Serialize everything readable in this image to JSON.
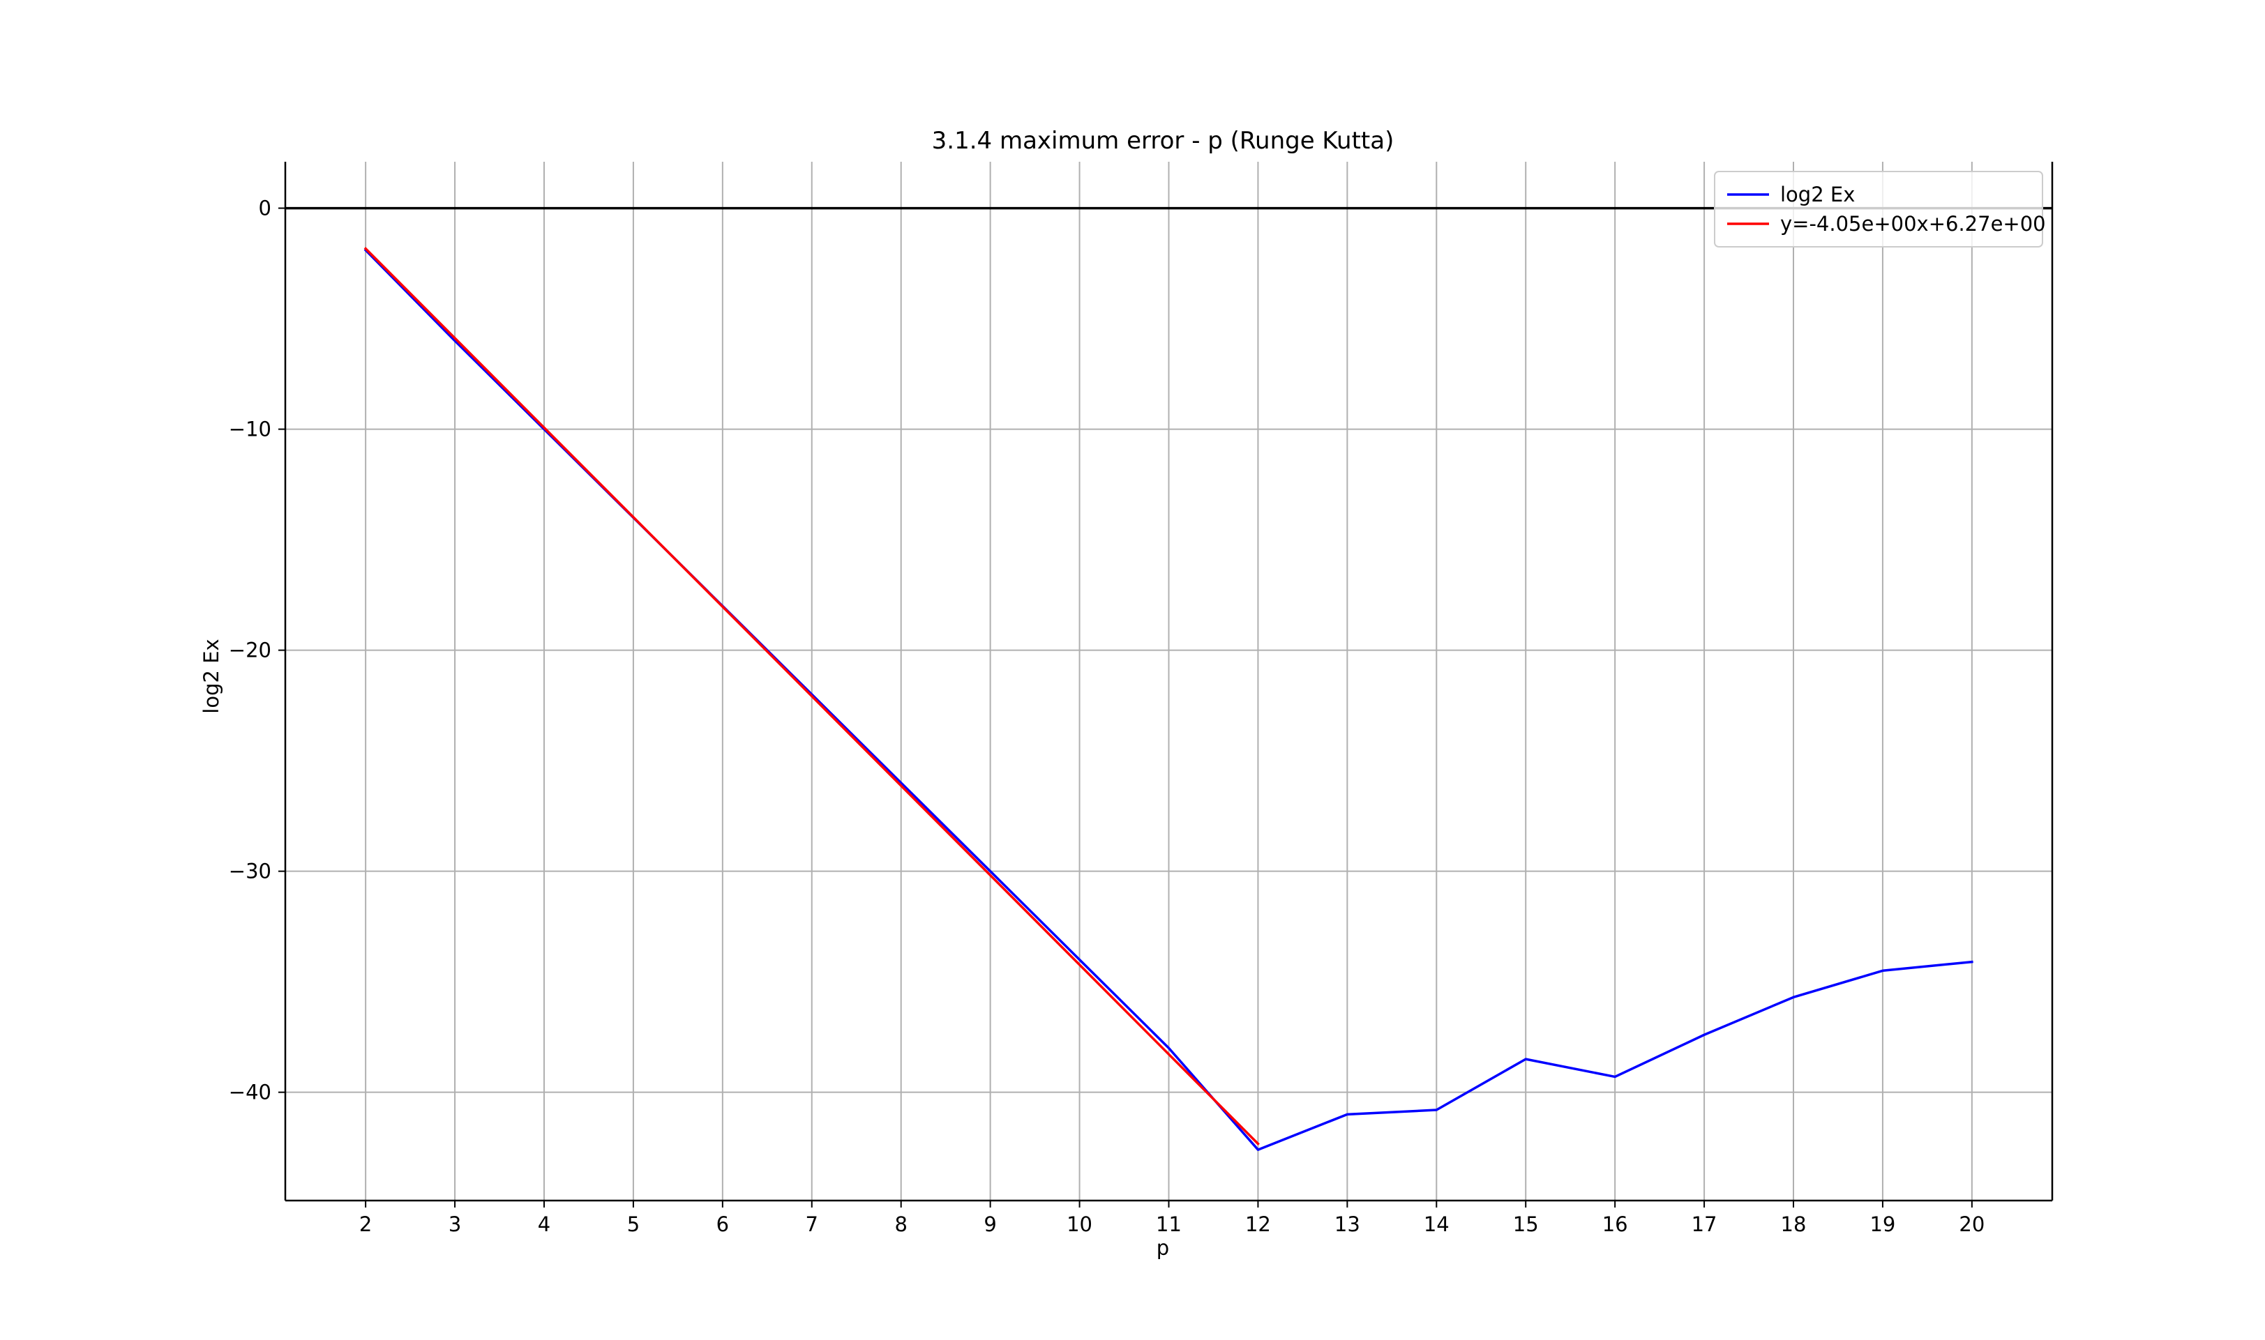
{
  "chart_data": {
    "type": "line",
    "title": "3.1.4 maximum error - p (Runge Kutta)",
    "xlabel": "p",
    "ylabel": "log2 Ex",
    "xlim": [
      1.1,
      20.9
    ],
    "ylim": [
      -44.9,
      2.1
    ],
    "xticks": [
      2,
      3,
      4,
      5,
      6,
      7,
      8,
      9,
      10,
      11,
      12,
      13,
      14,
      15,
      16,
      17,
      18,
      19,
      20
    ],
    "yticks": [
      0,
      -10,
      -20,
      -30,
      -40
    ],
    "ytick_labels": [
      "0",
      "−10",
      "−20",
      "−30",
      "−40"
    ],
    "grid": true,
    "hline": 0,
    "legend_position": "upper right",
    "series": [
      {
        "name": "log2 Ex",
        "color": "#0000ff",
        "x": [
          2,
          3,
          4,
          5,
          6,
          7,
          8,
          9,
          10,
          11,
          12,
          13,
          14,
          15,
          16,
          17,
          18,
          19,
          20
        ],
        "y": [
          -1.9,
          -6.0,
          -10.0,
          -14.0,
          -18.0,
          -22.0,
          -26.0,
          -30.0,
          -34.0,
          -38.0,
          -42.6,
          -41.0,
          -40.8,
          -38.5,
          -39.3,
          -37.4,
          -35.7,
          -34.5,
          -34.1
        ]
      },
      {
        "name": "y=-4.05e+00x+6.27e+00",
        "color": "#ff0000",
        "x": [
          2,
          12
        ],
        "y": [
          -1.83,
          -42.33
        ]
      }
    ]
  }
}
